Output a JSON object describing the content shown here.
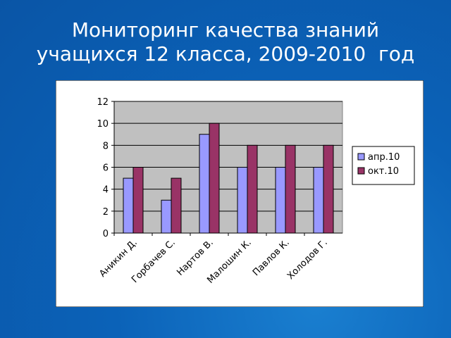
{
  "chart_data": {
    "type": "bar",
    "title": "Мониторинг качества знаний учащихся 12 класса, 2009-2010  год",
    "categories": [
      "Аникин Д.",
      "Горбачев С.",
      "Нартов В.",
      "Малошин К.",
      "Павлов К.",
      "Холодов Г."
    ],
    "series": [
      {
        "name": "апр.10",
        "color": "#9999ff",
        "values": [
          5,
          3,
          9,
          6,
          6,
          6
        ]
      },
      {
        "name": "окт.10",
        "color": "#993366",
        "values": [
          6,
          5,
          10,
          8,
          8,
          8
        ]
      }
    ],
    "ylim": [
      0,
      12
    ],
    "yticks": [
      0,
      2,
      4,
      6,
      8,
      10,
      12
    ],
    "grid": true,
    "legend": "right"
  }
}
